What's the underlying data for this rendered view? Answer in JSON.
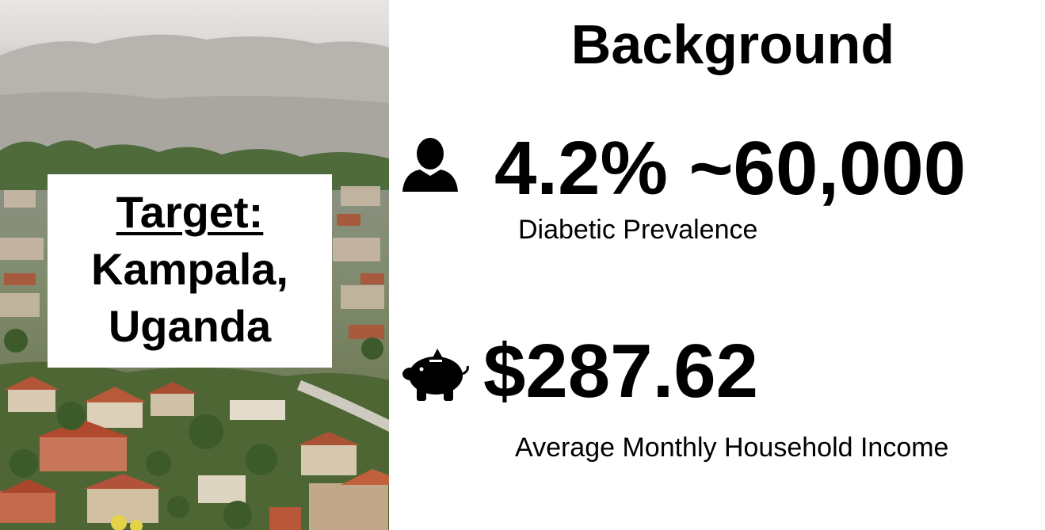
{
  "photo": {
    "description_icon": "city-photo"
  },
  "target": {
    "label": "Target:",
    "city": "Kampala,",
    "country": "Uganda"
  },
  "title": "Background",
  "stats": {
    "prevalence": {
      "icon": "person-icon",
      "value": "4.2% ~60,000",
      "label": "Diabetic Prevalence"
    },
    "income": {
      "icon": "piggy-bank-icon",
      "value": "$287.62",
      "label": "Average Monthly Household Income"
    }
  }
}
